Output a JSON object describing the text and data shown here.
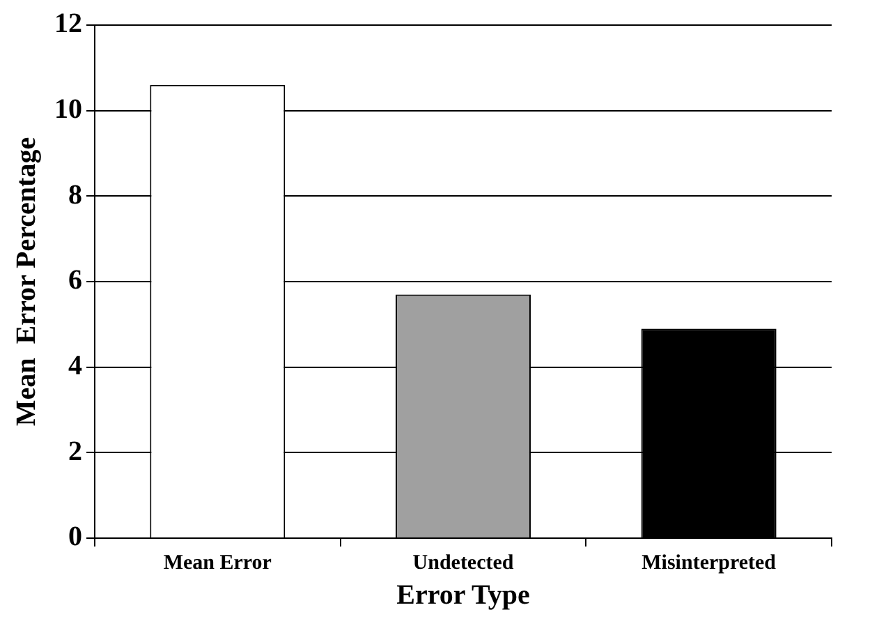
{
  "chart_data": {
    "type": "bar",
    "xlabel": "Error Type",
    "ylabel": "Mean  Error Percentage",
    "categories": [
      "Mean Error",
      "Undetected",
      "Misinterpreted"
    ],
    "values": [
      10.6,
      5.7,
      4.9
    ],
    "colors": [
      "#ffffff",
      "#a0a0a0",
      "#000000"
    ],
    "ylim": [
      0,
      12
    ],
    "yticks": [
      0,
      2,
      4,
      6,
      8,
      10,
      12
    ],
    "grid": "y",
    "legend": false
  }
}
